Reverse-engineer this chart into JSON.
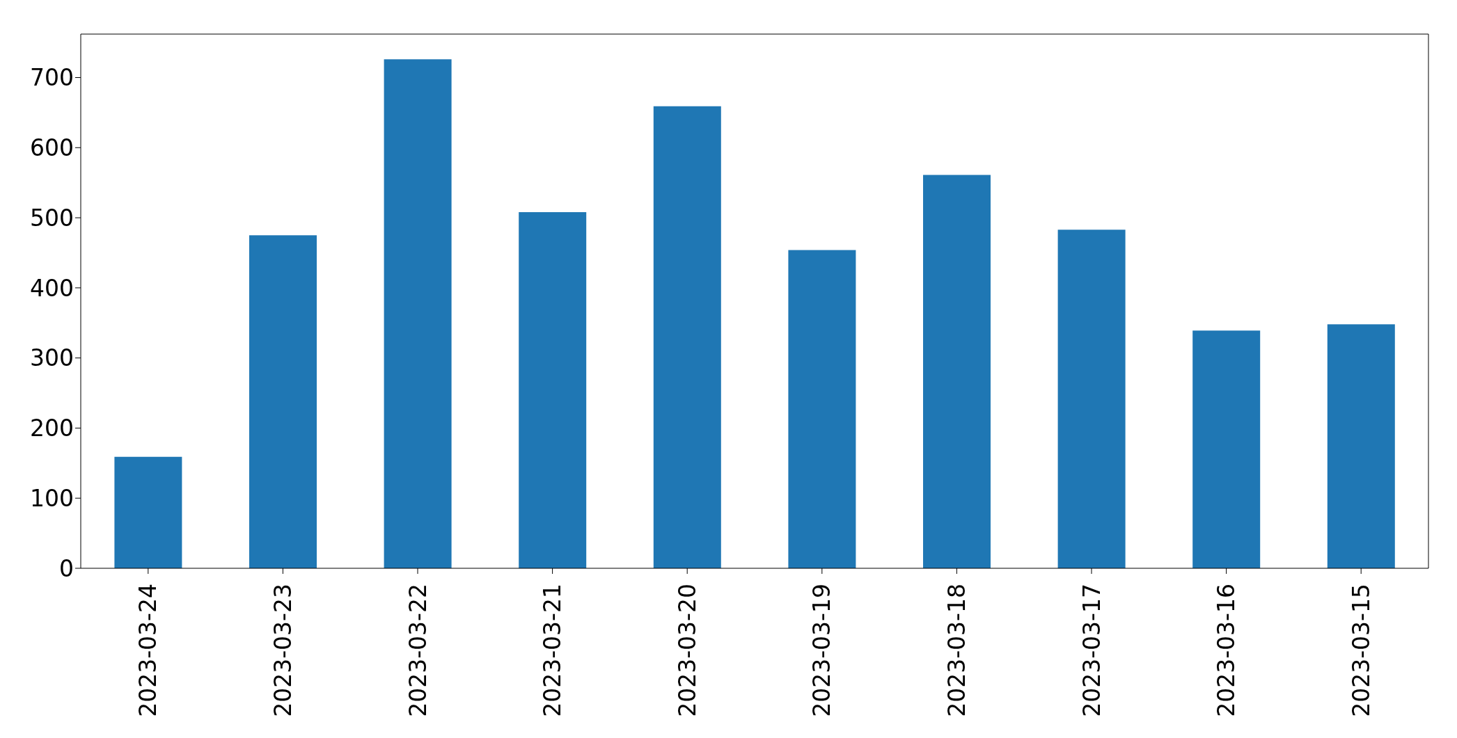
{
  "chart_data": {
    "type": "bar",
    "categories": [
      "2023-03-24",
      "2023-03-23",
      "2023-03-22",
      "2023-03-21",
      "2023-03-20",
      "2023-03-19",
      "2023-03-18",
      "2023-03-17",
      "2023-03-16",
      "2023-03-15"
    ],
    "values": [
      159,
      475,
      726,
      508,
      659,
      454,
      561,
      483,
      339,
      348
    ],
    "color": "#1f77b4",
    "ylim": [
      0,
      762
    ],
    "yticks": [
      0,
      100,
      200,
      300,
      400,
      500,
      600,
      700
    ]
  }
}
